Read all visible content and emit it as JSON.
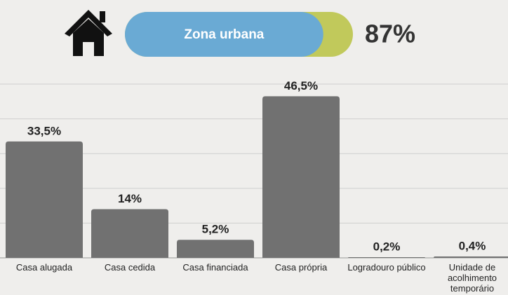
{
  "header": {
    "label": "Zona urbana",
    "value": 87,
    "value_label": "87%"
  },
  "chart_data": {
    "type": "bar",
    "categories": [
      "Casa alugada",
      "Casa cedida",
      "Casa financiada",
      "Casa própria",
      "Logradouro público",
      "Unidade de acolhimento temporário"
    ],
    "values": [
      33.5,
      14,
      5.2,
      46.5,
      0.2,
      0.4
    ],
    "value_labels": [
      "33,5%",
      "14%",
      "5,2%",
      "46,5%",
      "0,2%",
      "0,4%"
    ],
    "color": "#717171",
    "ylim": [
      0,
      50
    ],
    "yticks": [
      0,
      10,
      20,
      30,
      40,
      50
    ],
    "grid": true
  }
}
